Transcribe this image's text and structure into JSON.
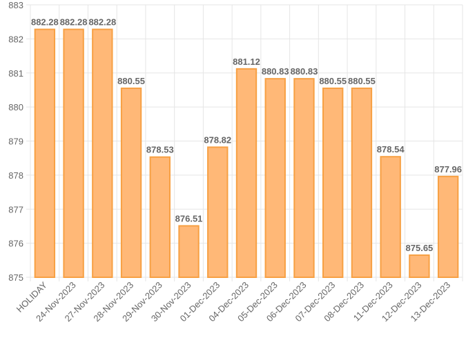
{
  "chart_data": {
    "type": "bar",
    "categories": [
      "HOLIDAY",
      "24-Nov-2023",
      "27-Nov-2023",
      "28-Nov-2023",
      "29-Nov-2023",
      "30-Nov-2023",
      "01-Dec-2023",
      "04-Dec-2023",
      "05-Dec-2023",
      "06-Dec-2023",
      "07-Dec-2023",
      "08-Dec-2023",
      "11-Dec-2023",
      "12-Dec-2023",
      "13-Dec-2023"
    ],
    "values": [
      882.28,
      882.28,
      882.28,
      880.55,
      878.53,
      876.51,
      878.82,
      881.12,
      880.83,
      880.83,
      880.55,
      880.55,
      878.54,
      875.65,
      877.96
    ],
    "color": "#ffb877",
    "border_color": "#f7a043",
    "ylim": [
      875,
      883
    ],
    "yticks": [
      875,
      876,
      877,
      878,
      879,
      880,
      881,
      882,
      883
    ],
    "grid": true
  }
}
